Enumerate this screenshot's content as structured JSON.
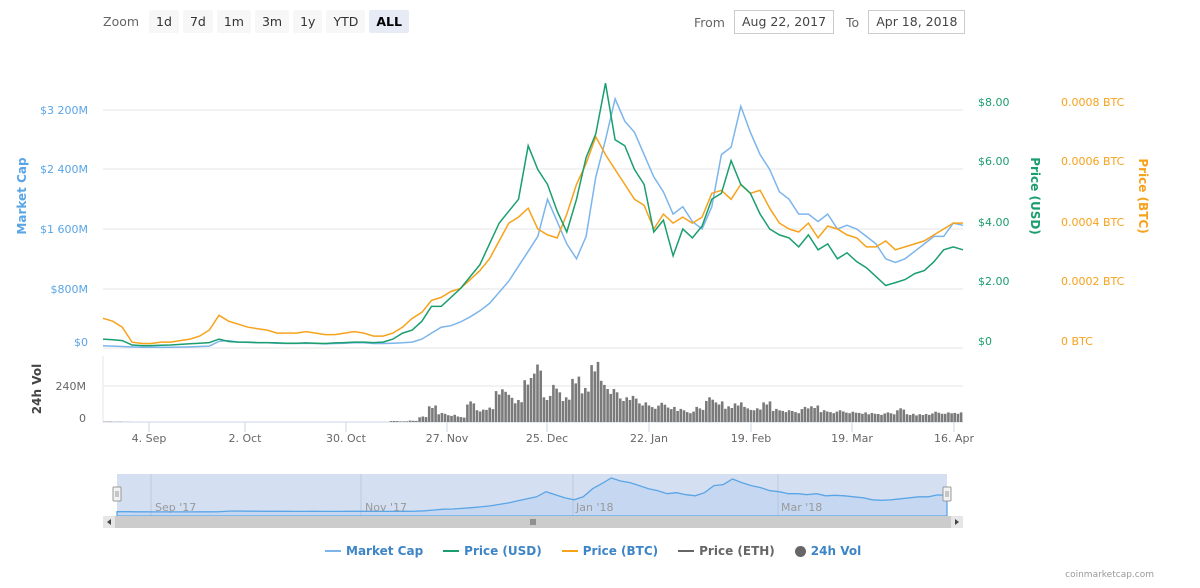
{
  "toolbar": {
    "zoom_label": "Zoom",
    "zoom_buttons": [
      "1d",
      "7d",
      "1m",
      "3m",
      "1y",
      "YTD",
      "ALL"
    ],
    "active_zoom": "ALL",
    "from_label": "From",
    "from_value": "Aug 22, 2017",
    "to_label": "To",
    "to_value": "Apr 18, 2018"
  },
  "colors": {
    "market_cap": "#7cb5ec",
    "price_usd": "#1a9e6e",
    "price_btc": "#f7a21b",
    "price_eth": "#666666",
    "volume": "#7a7a7a",
    "axis_market_cap": "#5aa5e6",
    "axis_usd": "#1a9e6e",
    "axis_btc": "#f7a21b",
    "navigator_fill": "#cdd9f0",
    "grid": "#e6e6e6"
  },
  "chart_data": {
    "type": "line",
    "title": "",
    "x_range": [
      "Aug 22, 2017",
      "Apr 18, 2018"
    ],
    "x_tick_labels": [
      "4. Sep",
      "2. Oct",
      "30. Oct",
      "27. Nov",
      "25. Dec",
      "22. Jan",
      "19. Feb",
      "19. Mar",
      "16. Apr"
    ],
    "left_axis": {
      "label": "Market Cap",
      "ticks": [
        "$0",
        "$800M",
        "$1 600M",
        "$2 400M",
        "$3 200M"
      ],
      "range": [
        0,
        3200
      ]
    },
    "right_axis_usd": {
      "label": "Price (USD)",
      "ticks": [
        "$0",
        "$2.00",
        "$4.00",
        "$6.00",
        "$8.00"
      ],
      "range": [
        0,
        8
      ]
    },
    "right_axis_btc": {
      "label": "Price (BTC)",
      "ticks": [
        "0 BTC",
        "0.0002 BTC",
        "0.0004 BTC",
        "0.0006 BTC",
        "0.0008 BTC"
      ],
      "range": [
        0,
        0.0008
      ]
    },
    "volume_axis": {
      "label": "24h Vol",
      "ticks": [
        "0",
        "240M"
      ],
      "range": [
        0,
        480
      ]
    },
    "legend": [
      "Market Cap",
      "Price (USD)",
      "Price (BTC)",
      "Price (ETH)",
      "24h Vol"
    ],
    "series": [
      {
        "name": "Market Cap",
        "unit": "USD millions",
        "values": [
          30,
          25,
          20,
          15,
          10,
          10,
          10,
          10,
          12,
          15,
          20,
          25,
          90,
          100,
          80,
          75,
          70,
          70,
          65,
          60,
          60,
          65,
          60,
          55,
          60,
          65,
          70,
          70,
          60,
          60,
          65,
          70,
          80,
          120,
          200,
          280,
          300,
          350,
          420,
          500,
          600,
          750,
          900,
          1100,
          1300,
          1500,
          2000,
          1700,
          1400,
          1200,
          1500,
          2300,
          2800,
          3350,
          3050,
          2900,
          2600,
          2300,
          2100,
          1800,
          1900,
          1700,
          1600,
          1900,
          2600,
          2700,
          3250,
          2900,
          2600,
          2400,
          2100,
          2000,
          1800,
          1800,
          1700,
          1800,
          1600,
          1650,
          1600,
          1500,
          1400,
          1200,
          1150,
          1200,
          1300,
          1400,
          1500,
          1500,
          1680,
          1650
        ]
      },
      {
        "name": "Price (USD)",
        "unit": "USD",
        "values": [
          0.3,
          0.28,
          0.25,
          0.1,
          0.08,
          0.08,
          0.09,
          0.1,
          0.12,
          0.14,
          0.16,
          0.18,
          0.3,
          0.22,
          0.2,
          0.2,
          0.18,
          0.18,
          0.17,
          0.16,
          0.16,
          0.17,
          0.16,
          0.15,
          0.17,
          0.18,
          0.2,
          0.2,
          0.18,
          0.2,
          0.3,
          0.5,
          0.6,
          0.9,
          1.4,
          1.4,
          1.7,
          2.0,
          2.4,
          2.8,
          3.5,
          4.2,
          4.6,
          5.0,
          6.8,
          6.0,
          5.5,
          4.6,
          3.9,
          5.0,
          6.4,
          7.2,
          8.9,
          7.0,
          6.8,
          6.0,
          5.5,
          3.9,
          4.3,
          3.1,
          4.0,
          3.7,
          4.1,
          5.0,
          5.2,
          6.3,
          5.5,
          5.2,
          4.5,
          4.0,
          3.8,
          3.7,
          3.4,
          3.8,
          3.3,
          3.5,
          3.0,
          3.2,
          2.9,
          2.7,
          2.4,
          2.1,
          2.2,
          2.3,
          2.5,
          2.6,
          2.9,
          3.3,
          3.4,
          3.3
        ]
      },
      {
        "name": "Price (BTC)",
        "unit": "BTC",
        "values": [
          0.0001,
          9e-05,
          7e-05,
          2e-05,
          1.5e-05,
          1.5e-05,
          2e-05,
          2e-05,
          2.5e-05,
          3e-05,
          4e-05,
          6e-05,
          0.00011,
          9e-05,
          8e-05,
          7e-05,
          6.5e-05,
          6e-05,
          5e-05,
          5e-05,
          5e-05,
          5.5e-05,
          5e-05,
          4.5e-05,
          4.5e-05,
          5e-05,
          5.5e-05,
          5e-05,
          4e-05,
          4e-05,
          5e-05,
          7e-05,
          0.0001,
          0.00012,
          0.00016,
          0.00017,
          0.00019,
          0.0002,
          0.00023,
          0.00026,
          0.0003,
          0.00036,
          0.00042,
          0.00044,
          0.00047,
          0.0004,
          0.00038,
          0.00037,
          0.00045,
          0.00055,
          0.00062,
          0.00071,
          0.00065,
          0.0006,
          0.00055,
          0.0005,
          0.00048,
          0.0004,
          0.00045,
          0.00042,
          0.00044,
          0.00042,
          0.00044,
          0.00052,
          0.00053,
          0.0005,
          0.00055,
          0.00052,
          0.00053,
          0.00047,
          0.00042,
          0.0004,
          0.00039,
          0.00042,
          0.00037,
          0.00041,
          0.0004,
          0.00038,
          0.00037,
          0.00034,
          0.00034,
          0.00036,
          0.00033,
          0.00034,
          0.00035,
          0.00036,
          0.00038,
          0.0004,
          0.00042,
          0.00042
        ]
      },
      {
        "name": "24h Vol",
        "unit": "USD millions",
        "values": [
          3,
          2,
          1,
          0,
          0,
          0,
          0,
          0,
          0,
          0,
          0,
          0,
          0,
          0,
          0,
          0,
          0,
          0,
          0,
          0,
          0,
          0,
          0,
          0,
          0,
          0,
          0,
          0,
          0,
          0,
          8,
          5,
          10,
          40,
          120,
          70,
          55,
          40,
          150,
          90,
          110,
          250,
          220,
          160,
          320,
          440,
          200,
          270,
          180,
          330,
          260,
          460,
          300,
          240,
          180,
          200,
          150,
          120,
          140,
          110,
          100,
          80,
          110,
          180,
          150,
          120,
          150,
          110,
          100,
          150,
          100,
          90,
          80,
          110,
          120,
          90,
          80,
          85,
          75,
          70,
          70,
          65,
          70,
          100,
          60,
          60,
          65,
          75,
          70,
          70
        ]
      }
    ],
    "navigator": {
      "labels": [
        "Sep '17",
        "Nov '17",
        "Jan '18",
        "Mar '18"
      ]
    }
  },
  "footer": {
    "credit": "coinmarketcap.com"
  }
}
